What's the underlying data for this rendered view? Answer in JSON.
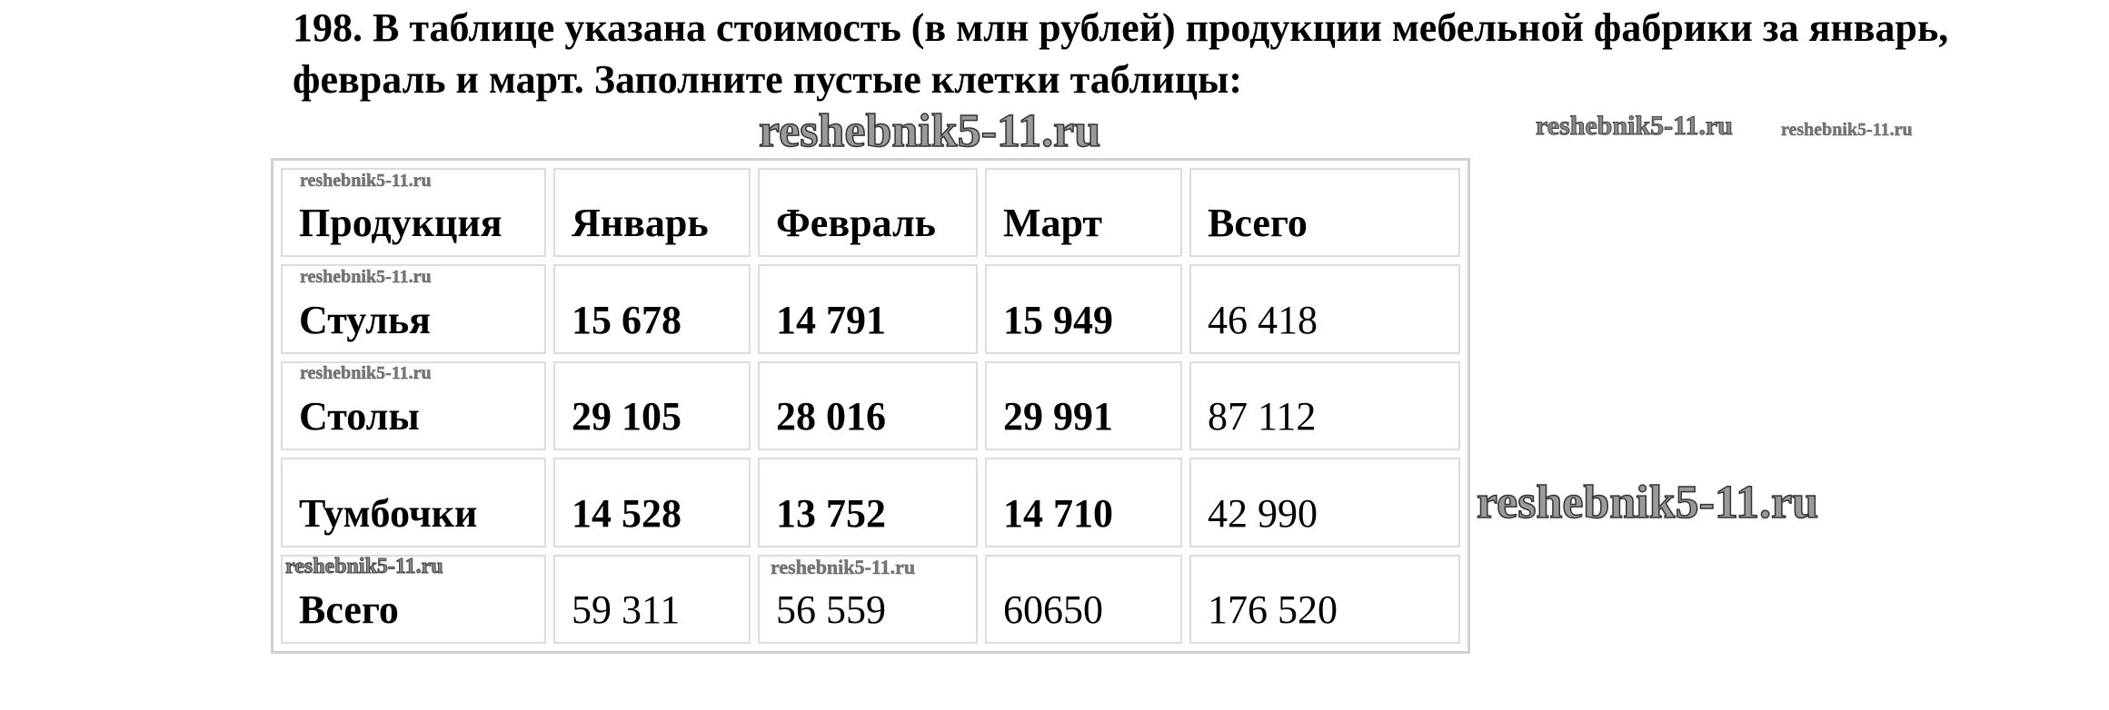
{
  "task": {
    "title": "198. В таблице указана стоимость (в млн рублей) продукции мебельной фабрики за январь, февраль и март. Заполните пустые клетки таблицы:"
  },
  "table": {
    "headers": [
      "Продукция",
      "Январь",
      "Февраль",
      "Март",
      "Всего"
    ],
    "rows": [
      [
        "Стулья",
        "15 678",
        "14 791",
        "15 949",
        "46 418"
      ],
      [
        "Столы",
        "29 105",
        "28 016",
        "29 991",
        "87 112"
      ],
      [
        "Тумбочки",
        "14 528",
        "13 752",
        "14 710",
        "42 990"
      ],
      [
        "Всего",
        "59 311",
        "56 559",
        "60650",
        "176 520"
      ]
    ]
  },
  "watermark": "reshebnik5-11.ru"
}
